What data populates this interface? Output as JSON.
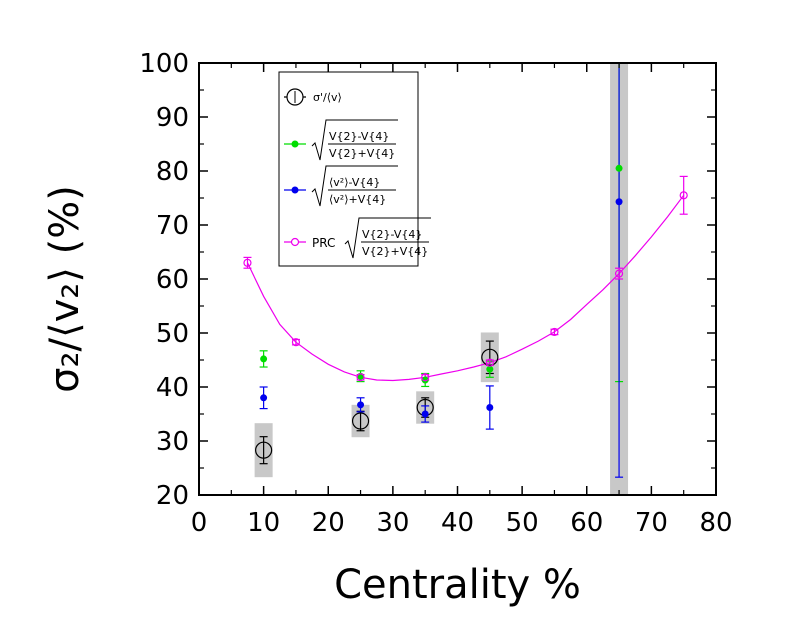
{
  "chart_data": {
    "type": "scatter",
    "xlabel": "Centrality %",
    "ylabel": "σ₂/⟨v₂⟩ (%)",
    "xlim": [
      0,
      80
    ],
    "ylim": [
      20,
      100
    ],
    "xticks": [
      0,
      10,
      20,
      30,
      40,
      50,
      60,
      70,
      80
    ],
    "yticks": [
      20,
      30,
      40,
      50,
      60,
      70,
      80,
      90,
      100
    ],
    "grid": false,
    "legend_placement": "top-left",
    "legend": [
      {
        "label": "σ'/⟨v⟩",
        "color": "#000000",
        "marker": "open-circle-large"
      },
      {
        "label_num": "V{2}-V{4}",
        "label_den": "V{2}+V{4}",
        "color": "#00dd00",
        "marker": "filled-circle"
      },
      {
        "label_num": "⟨v²⟩-V{4}",
        "label_den": "⟨v²⟩+V{4}",
        "color": "#0000ee",
        "marker": "filled-circle"
      },
      {
        "label_prefix": "PRC",
        "label_num": "V{2}-V{4}",
        "label_den": "V{2}+V{4}",
        "color": "#ee00ee",
        "marker": "open-circle"
      }
    ],
    "series": [
      {
        "color": "#000000",
        "marker": "open-circle-large",
        "points": [
          {
            "x": 10,
            "y": 28.3,
            "err": 2.5,
            "sys": 5.0
          },
          {
            "x": 25,
            "y": 33.7,
            "err": 1.8,
            "sys": 3.0
          },
          {
            "x": 35,
            "y": 36.2,
            "err": 1.8,
            "sys": 3.0
          },
          {
            "x": 45,
            "y": 45.5,
            "err": 3.0,
            "sys": 4.6
          }
        ]
      },
      {
        "color": "#00dd00",
        "marker": "filled-circle",
        "points": [
          {
            "x": 10,
            "y": 45.2,
            "err": 1.5
          },
          {
            "x": 25,
            "y": 42.0,
            "err": 1.0
          },
          {
            "x": 35,
            "y": 41.3,
            "err": 1.2
          },
          {
            "x": 45,
            "y": 43.3,
            "err": 1.5
          },
          {
            "x": 65,
            "y": 80.5,
            "err": 39.5
          }
        ]
      },
      {
        "color": "#0000ee",
        "marker": "filled-circle",
        "points": [
          {
            "x": 10,
            "y": 38.0,
            "err": 2.0
          },
          {
            "x": 25,
            "y": 36.7,
            "err": 1.3
          },
          {
            "x": 35,
            "y": 35.0,
            "err": 1.5
          },
          {
            "x": 45,
            "y": 36.2,
            "err": 4.0
          },
          {
            "x": 65,
            "y": 74.3,
            "err": 51.0
          }
        ]
      },
      {
        "color": "#ee00ee",
        "marker": "open-circle",
        "points": [
          {
            "x": 7.5,
            "y": 63.0,
            "err": 1.0
          },
          {
            "x": 15,
            "y": 48.3,
            "err": 0.5
          },
          {
            "x": 25,
            "y": 41.8,
            "err": 0.5
          },
          {
            "x": 35,
            "y": 41.8,
            "err": 0.5
          },
          {
            "x": 45,
            "y": 44.5,
            "err": 0.5
          },
          {
            "x": 55,
            "y": 50.2,
            "err": 0.5
          },
          {
            "x": 65,
            "y": 61.0,
            "err": 1.0
          },
          {
            "x": 75,
            "y": 75.5,
            "err": 3.5
          }
        ],
        "curve": [
          [
            7.5,
            63.0
          ],
          [
            10,
            56.8
          ],
          [
            12.5,
            51.6
          ],
          [
            15,
            48.3
          ],
          [
            17.5,
            46.1
          ],
          [
            20,
            44.2
          ],
          [
            22.5,
            42.8
          ],
          [
            25,
            41.8
          ],
          [
            27.5,
            41.3
          ],
          [
            30,
            41.2
          ],
          [
            32.5,
            41.4
          ],
          [
            35,
            41.8
          ],
          [
            37.5,
            42.4
          ],
          [
            40,
            43.0
          ],
          [
            42.5,
            43.7
          ],
          [
            45,
            44.5
          ],
          [
            47.5,
            45.6
          ],
          [
            50,
            47.0
          ],
          [
            52.5,
            48.5
          ],
          [
            55,
            50.2
          ],
          [
            57.5,
            52.5
          ],
          [
            60,
            55.3
          ],
          [
            62.5,
            58.0
          ],
          [
            65,
            61.0
          ],
          [
            67.5,
            64.3
          ],
          [
            70,
            67.8
          ],
          [
            72.5,
            71.5
          ],
          [
            75,
            75.5
          ]
        ]
      }
    ],
    "sys_band_65": {
      "x": 65,
      "ymin": 20,
      "ymax": 100
    }
  }
}
